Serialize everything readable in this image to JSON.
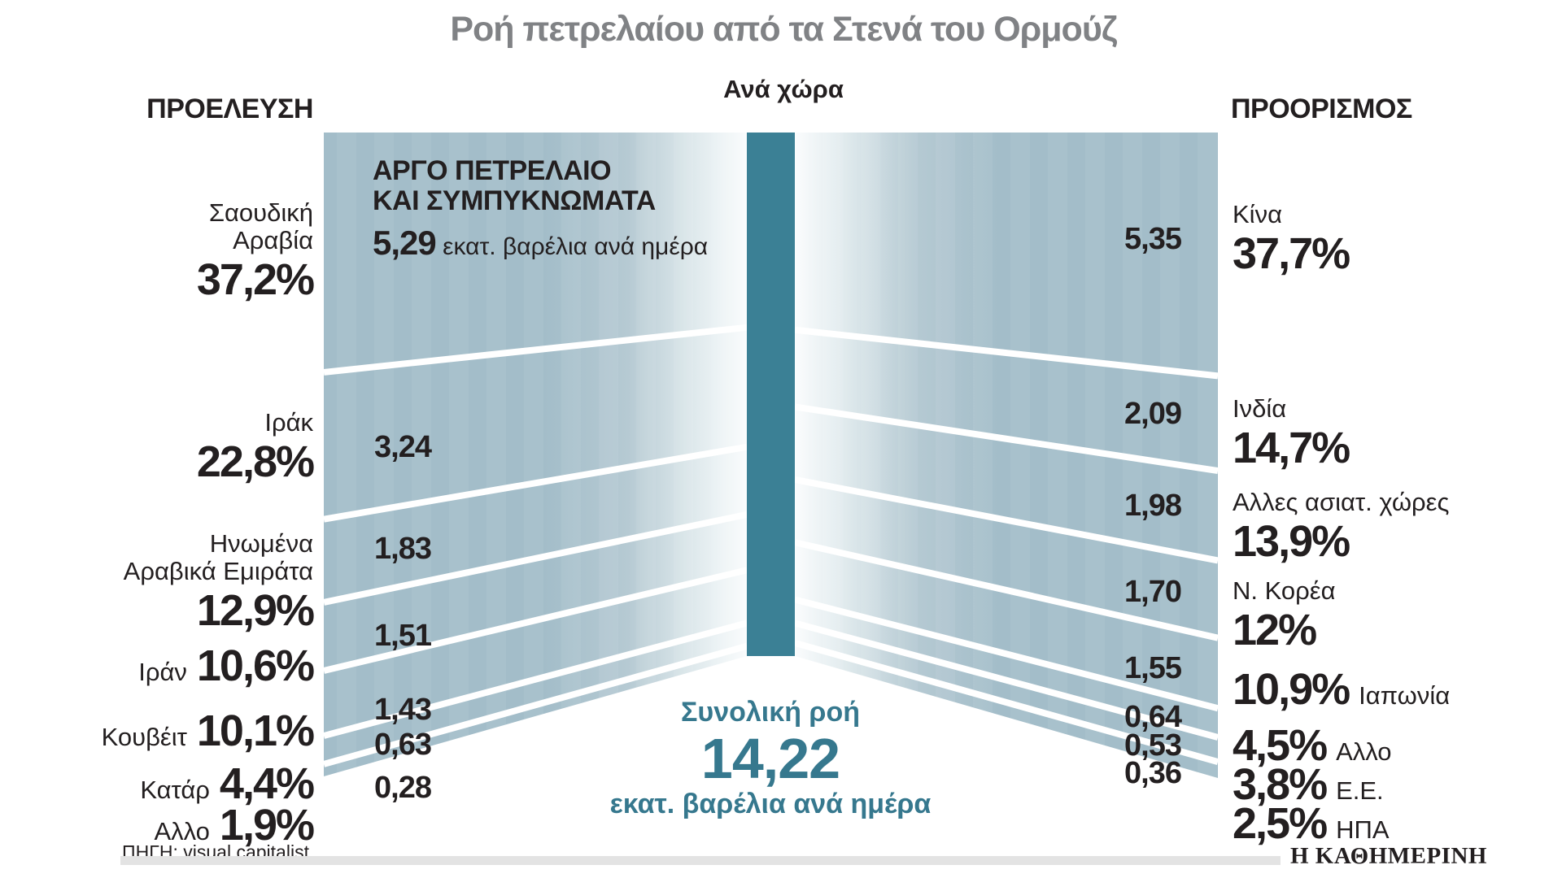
{
  "title": "Ροή πετρελαίου από τα Στενά του Ορμούζ",
  "subtitle": "Ανά χώρα",
  "left_header": "ΠΡΟΕΛΕΥΣΗ",
  "right_header": "ΠΡΟΟΡΙΣΜΟΣ",
  "source": "ΠΗΓΗ: visual capitalist",
  "brand": "Η ΚΑΘΗΜΕΡΙΝΗ",
  "product_note": {
    "line1": "ΑΡΓΟ ΠΕΤΡΕΛΑΙΟ",
    "line2": "ΚΑΙ ΣΥΜΠΥΚΝΩΜΑΤΑ",
    "value": "5,29",
    "unit": "εκατ. βαρέλια ανά ημέρα"
  },
  "total_flow": {
    "label": "Συνολική ροή",
    "value": "14,22",
    "unit": "εκατ. βαρέλια ανά ημέρα"
  },
  "colors": {
    "band": "#a3bdc9",
    "band_fade": "#fafcfd",
    "bar": "#3b8095",
    "teal_text": "#36788e",
    "title_gray": "#808285",
    "ink": "#231f20",
    "footer_bar": "#e3e3e3",
    "separator": "#ffffff"
  },
  "chart_data": {
    "type": "sankey-funnel",
    "title": "Ροή πετρελαίου από τα Στενά του Ορμούζ",
    "unit": "εκατ. βαρέλια ανά ημέρα",
    "total": 14.22,
    "legend_position": "none",
    "origins": [
      {
        "name": "Σαουδική Αραβία",
        "pct": 37.2,
        "pct_label": "37,2%",
        "value": 5.29,
        "value_label": "5,29"
      },
      {
        "name": "Ιράκ",
        "pct": 22.8,
        "pct_label": "22,8%",
        "value": 3.24,
        "value_label": "3,24"
      },
      {
        "name": "Ηνωμένα Αραβικά Εμιράτα",
        "pct": 12.9,
        "pct_label": "12,9%",
        "value": 1.83,
        "value_label": "1,83"
      },
      {
        "name": "Ιράν",
        "pct": 10.6,
        "pct_label": "10,6%",
        "value": 1.51,
        "value_label": "1,51"
      },
      {
        "name": "Κουβέιτ",
        "pct": 10.1,
        "pct_label": "10,1%",
        "value": 1.43,
        "value_label": "1,43"
      },
      {
        "name": "Κατάρ",
        "pct": 4.4,
        "pct_label": "4,4%",
        "value": 0.63,
        "value_label": "0,63"
      },
      {
        "name": "Αλλο",
        "pct": 1.9,
        "pct_label": "1,9%",
        "value": 0.28,
        "value_label": "0,28"
      }
    ],
    "destinations": [
      {
        "name": "Κίνα",
        "pct": 37.7,
        "pct_label": "37,7%",
        "value": 5.35,
        "value_label": "5,35"
      },
      {
        "name": "Ινδία",
        "pct": 14.7,
        "pct_label": "14,7%",
        "value": 2.09,
        "value_label": "2,09"
      },
      {
        "name": "Αλλες ασιατ. χώρες",
        "pct": 13.9,
        "pct_label": "13,9%",
        "value": 1.98,
        "value_label": "1,98"
      },
      {
        "name": "Ν. Κορέα",
        "pct": 12.0,
        "pct_label": "12%",
        "value": 1.7,
        "value_label": "1,70"
      },
      {
        "name": "Ιαπωνία",
        "pct": 10.9,
        "pct_label": "10,9%",
        "value": 1.55,
        "value_label": "1,55"
      },
      {
        "name": "Αλλο",
        "pct": 4.5,
        "pct_label": "4,5%",
        "value": 0.64,
        "value_label": "0,64"
      },
      {
        "name": "Ε.Ε.",
        "pct": 3.8,
        "pct_label": "3,8%",
        "value": 0.53,
        "value_label": "0,53"
      },
      {
        "name": "ΗΠΑ",
        "pct": 2.5,
        "pct_label": "2,5%",
        "value": 0.36,
        "value_label": "0,36"
      }
    ]
  }
}
